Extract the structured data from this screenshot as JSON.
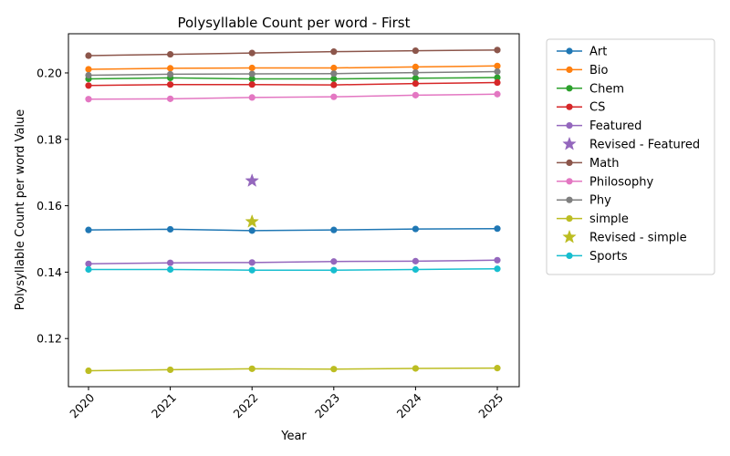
{
  "chart_data": {
    "type": "line",
    "title": "Polysyllable Count per word - First",
    "xlabel": "Year",
    "ylabel": "Polysyllable Count per word Value",
    "x": [
      "2020",
      "2021",
      "2022",
      "2023",
      "2024",
      "2025"
    ],
    "yticks": [
      "0.12",
      "0.14",
      "0.16",
      "0.18",
      "0.20"
    ],
    "ylim": [
      0.1055,
      0.2118
    ],
    "grid": false,
    "legend_placement": "outside upper right",
    "series": [
      {
        "name": "Art",
        "color": "#1f77b4",
        "marker": "circle",
        "values": [
          0.1527,
          0.1529,
          0.1525,
          0.1527,
          0.153,
          0.1531
        ]
      },
      {
        "name": "Bio",
        "color": "#ff7f0e",
        "marker": "circle",
        "values": [
          0.2011,
          0.2014,
          0.2015,
          0.2015,
          0.2018,
          0.2021
        ]
      },
      {
        "name": "Chem",
        "color": "#2ca02c",
        "marker": "circle",
        "values": [
          0.1982,
          0.1985,
          0.1982,
          0.1982,
          0.1984,
          0.1986
        ]
      },
      {
        "name": "CS",
        "color": "#d62728",
        "marker": "circle",
        "values": [
          0.1962,
          0.1965,
          0.1965,
          0.1964,
          0.1968,
          0.1971
        ]
      },
      {
        "name": "Featured",
        "color": "#9467bd",
        "marker": "circle",
        "values": [
          0.1425,
          0.1428,
          0.1429,
          0.1432,
          0.1433,
          0.1436
        ]
      },
      {
        "name": "Revised - Featured",
        "color": "#9467bd",
        "marker": "star",
        "points": [
          {
            "x": "2022",
            "y": 0.1675
          }
        ]
      },
      {
        "name": "Math",
        "color": "#8c564b",
        "marker": "circle",
        "values": [
          0.2052,
          0.2056,
          0.206,
          0.2064,
          0.2067,
          0.2069
        ]
      },
      {
        "name": "Philosophy",
        "color": "#e377c2",
        "marker": "circle",
        "values": [
          0.1921,
          0.1922,
          0.1926,
          0.1928,
          0.1933,
          0.1936
        ]
      },
      {
        "name": "Phy",
        "color": "#7f7f7f",
        "marker": "circle",
        "values": [
          0.1993,
          0.1996,
          0.1997,
          0.1998,
          0.2001,
          0.2004
        ]
      },
      {
        "name": "simple",
        "color": "#bcbd22",
        "marker": "circle",
        "values": [
          0.1103,
          0.1106,
          0.1109,
          0.1108,
          0.111,
          0.1111
        ]
      },
      {
        "name": "Revised - simple",
        "color": "#bcbd22",
        "marker": "star",
        "points": [
          {
            "x": "2022",
            "y": 0.1552
          }
        ]
      },
      {
        "name": "Sports",
        "color": "#17becf",
        "marker": "circle",
        "values": [
          0.1408,
          0.1408,
          0.1406,
          0.1406,
          0.1408,
          0.141
        ]
      }
    ]
  }
}
